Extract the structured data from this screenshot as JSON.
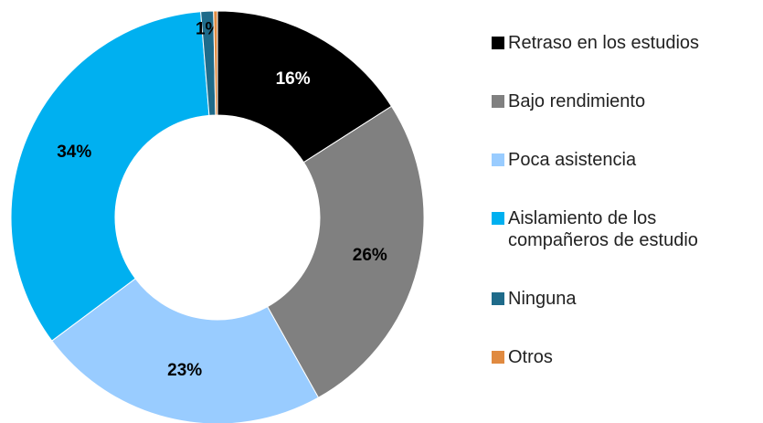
{
  "chart_data": {
    "type": "donut",
    "categories": [
      "Retraso en los estudios",
      "Bajo rendimiento",
      "Poca asistencia",
      "Aislamiento de los compañeros de estudio",
      "Ninguna",
      "Otros"
    ],
    "values": [
      16,
      26,
      23,
      34,
      1,
      0.3
    ],
    "value_labels": [
      "16%",
      "26%",
      "23%",
      "34%",
      "1%",
      null
    ],
    "colors": [
      "#000000",
      "#808080",
      "#99ccff",
      "#00b0f0",
      "#1f6b8a",
      "#e08a40"
    ],
    "legend": "right"
  }
}
